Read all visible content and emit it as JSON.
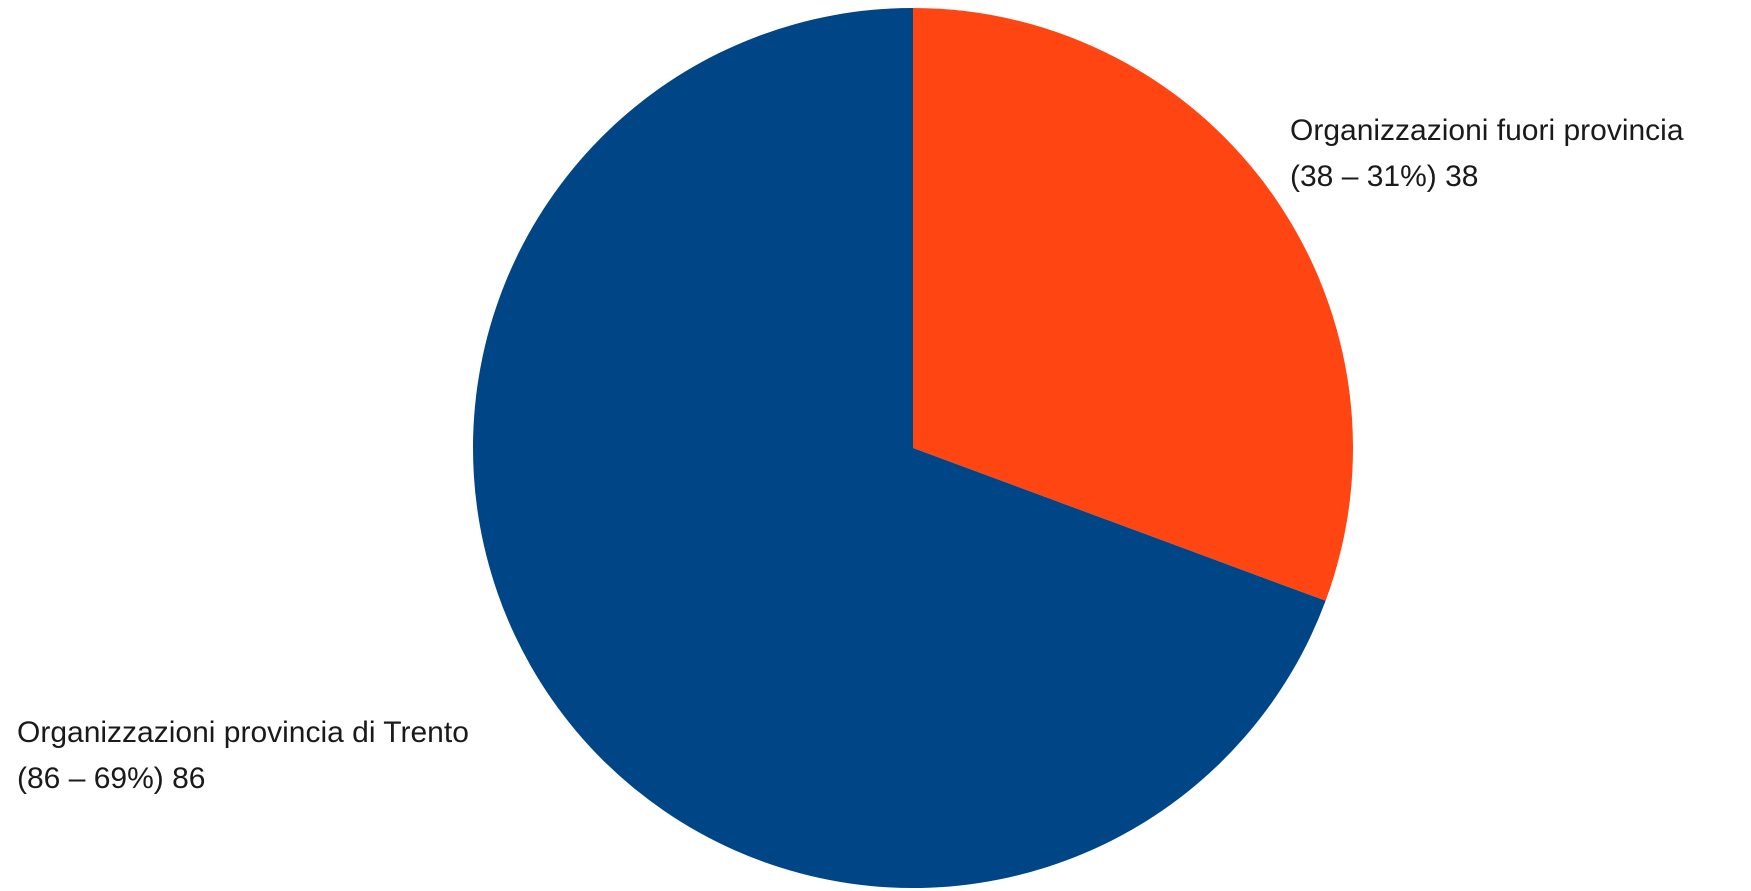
{
  "chart_data": {
    "type": "pie",
    "start_angle_deg": 0,
    "direction": "clockwise",
    "slices": [
      {
        "name": "Organizzazioni fuori provincia",
        "detail": "(38 – 31%) 38",
        "value": 38,
        "percent": 31,
        "color": "#FF4512"
      },
      {
        "name": "Organizzazioni provincia di Trento",
        "detail": "(86 – 69%) 86",
        "value": 86,
        "percent": 69,
        "color": "#004586"
      }
    ]
  }
}
